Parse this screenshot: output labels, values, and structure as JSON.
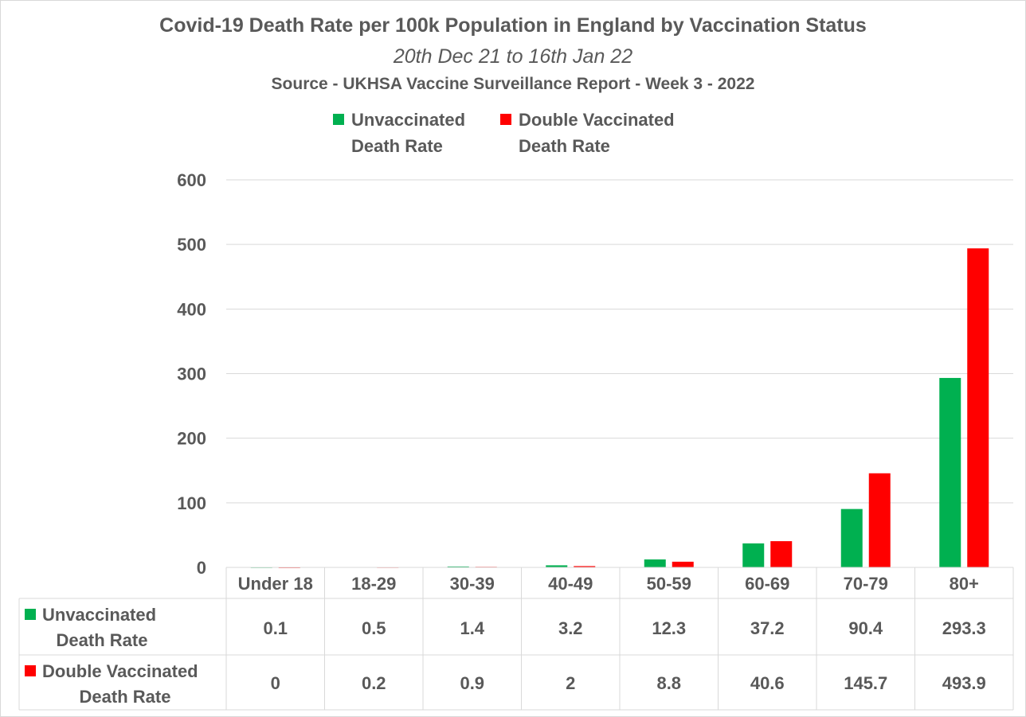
{
  "chart_data": {
    "type": "bar",
    "title": "Covid-19 Death Rate per 100k Population in England by Vaccination Status",
    "subtitle": "20th Dec 21 to 16th Jan 22",
    "source": "Source - UKHSA Vaccine Surveillance Report - Week 3 - 2022",
    "categories": [
      "Under 18",
      "18-29",
      "30-39",
      "40-49",
      "50-59",
      "60-69",
      "70-79",
      "80+"
    ],
    "series": [
      {
        "name": "Unvaccinated Death Rate",
        "name_lines": [
          "Unvaccinated",
          "Death Rate"
        ],
        "color": "#00b050",
        "values": [
          0.1,
          0.5,
          1.4,
          3.2,
          12.3,
          37.2,
          90.4,
          293.3
        ],
        "labels": [
          "0.1",
          "0.5",
          "1.4",
          "3.2",
          "12.3",
          "37.2",
          "90.4",
          "293.3"
        ]
      },
      {
        "name": "Double Vaccinated Death Rate",
        "name_lines": [
          "Double Vaccinated",
          "Death Rate"
        ],
        "color": "#ff0000",
        "values": [
          0,
          0.2,
          0.9,
          2,
          8.8,
          40.6,
          145.7,
          493.9
        ],
        "labels": [
          "0",
          "0.2",
          "0.9",
          "2",
          "8.8",
          "40.6",
          "145.7",
          "493.9"
        ]
      }
    ],
    "ylim": [
      0,
      600
    ],
    "yticks": [
      "0",
      "100",
      "200",
      "300",
      "400",
      "500",
      "600"
    ],
    "grid": true,
    "legend": "top-center",
    "data_table": true
  }
}
